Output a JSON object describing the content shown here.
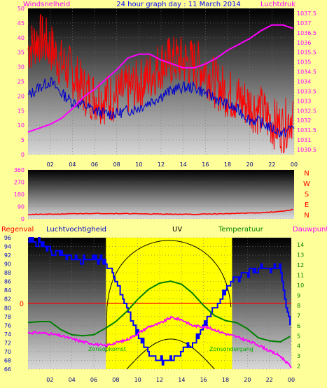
{
  "chart_data": [
    {
      "type": "line",
      "title": "24 hour graph day : 11 March 2014",
      "left_label": "Windsnelheid",
      "right_label": "Luchtdruk",
      "x_ticks": [
        "02",
        "04",
        "06",
        "08",
        "10",
        "12",
        "14",
        "16",
        "18",
        "20",
        "22",
        "00"
      ],
      "yleft_ticks": [
        0,
        5,
        10,
        15,
        20,
        25,
        30,
        35,
        40,
        45,
        50
      ],
      "yleft_range": [
        0,
        50
      ],
      "yright_ticks": [
        1030.5,
        1031,
        1031.5,
        1032,
        1032.5,
        1033,
        1033.5,
        1034,
        1034.5,
        1035,
        1035.5,
        1036,
        1036.5,
        1037,
        1037.5
      ],
      "yright_range": [
        1030.25,
        1037.75
      ],
      "series": [
        {
          "color": "#ff0000",
          "x": [
            0,
            1,
            2,
            3,
            4,
            5,
            6,
            7,
            8,
            9,
            10,
            11,
            12,
            13,
            14,
            15,
            16,
            17,
            18,
            19,
            20,
            21,
            22,
            23,
            24
          ],
          "y": [
            36,
            40,
            37,
            31,
            28,
            22,
            20,
            19,
            20,
            22,
            24,
            27,
            31,
            32,
            32,
            31,
            29,
            24,
            21,
            19,
            17,
            15,
            11,
            9,
            15
          ]
        },
        {
          "color": "#0000cc",
          "x": [
            0,
            1,
            2,
            3,
            4,
            5,
            6,
            7,
            8,
            9,
            10,
            11,
            12,
            13,
            14,
            15,
            16,
            17,
            18,
            19,
            20,
            21,
            22,
            23,
            24
          ],
          "y": [
            20,
            23,
            25,
            21,
            18,
            17,
            15,
            14,
            14,
            15,
            16,
            18,
            20,
            22,
            23,
            23,
            21,
            19,
            17,
            15,
            12,
            11,
            9,
            7,
            10
          ]
        },
        {
          "color": "#ff00ff",
          "x": [
            0,
            1,
            2,
            3,
            4,
            5,
            6,
            7,
            8,
            9,
            10,
            11,
            12,
            13,
            14,
            15,
            16,
            17,
            18,
            19,
            20,
            21,
            22,
            23,
            24
          ],
          "y": [
            1031.4,
            1031.6,
            1031.8,
            1032.1,
            1032.6,
            1033.2,
            1033.6,
            1034.1,
            1034.6,
            1035.2,
            1035.4,
            1035.4,
            1035.1,
            1034.9,
            1034.7,
            1034.7,
            1034.9,
            1035.2,
            1035.6,
            1035.9,
            1036.2,
            1036.6,
            1036.9,
            1036.9,
            1036.7
          ]
        }
      ]
    },
    {
      "type": "line",
      "x_ticks": [
        "02",
        "04",
        "06",
        "08",
        "10",
        "12",
        "14",
        "16",
        "18",
        "20",
        "22",
        "00"
      ],
      "y_ticks": [
        0,
        90,
        180,
        270,
        360
      ],
      "y_range": [
        0,
        360
      ],
      "compass": [
        "N",
        "W",
        "S",
        "E",
        "N"
      ],
      "series": [
        {
          "color": "#ff0000",
          "x": [
            0,
            3,
            6,
            9,
            12,
            15,
            18,
            21,
            23,
            24
          ],
          "y": [
            32,
            35,
            40,
            38,
            35,
            33,
            38,
            45,
            55,
            70
          ]
        }
      ]
    },
    {
      "type": "line",
      "labels": {
        "rain": "Regenval",
        "humidity": "Luchtvochtigheid",
        "uv": "UV",
        "temperature": "Temperatuur",
        "dewpoint": "Dauwpunt"
      },
      "rain_value_label": "0",
      "sunrise_label": "Zonsopkomst",
      "sunset_label": "Zonsondergang",
      "x_ticks": [
        "02",
        "04",
        "06",
        "08",
        "10",
        "12",
        "14",
        "16",
        "18",
        "20",
        "22",
        "00"
      ],
      "yleft_ticks": [
        66,
        68,
        70,
        72,
        74,
        76,
        78,
        80,
        82,
        84,
        86,
        88,
        90,
        92,
        94,
        96
      ],
      "yleft_range": [
        66,
        96
      ],
      "yright_ticks": [
        2,
        3,
        4,
        5,
        6,
        7,
        8,
        9,
        10,
        11,
        12,
        13,
        14
      ],
      "yright_range": [
        1.7,
        14.7
      ],
      "daylight_hours": [
        7.1,
        18.6
      ],
      "series": [
        {
          "name": "Luchtvochtigheid",
          "color": "#0000ff",
          "axis": "left",
          "x": [
            0,
            1,
            2,
            3,
            4,
            5,
            6,
            7,
            8,
            9,
            10,
            11,
            12,
            13,
            14,
            15,
            16,
            17,
            18,
            19,
            20,
            21,
            22,
            23,
            23.5,
            24
          ],
          "y": [
            95,
            95,
            93,
            92,
            91,
            91,
            91,
            91,
            86,
            80,
            74,
            70,
            68,
            68,
            70,
            72,
            76,
            80,
            84,
            87,
            88,
            89,
            89,
            89,
            80,
            76
          ]
        },
        {
          "name": "Temperatuur",
          "color": "#008000",
          "axis": "right",
          "x": [
            0,
            1,
            2,
            3,
            4,
            5,
            6,
            7,
            8,
            9,
            10,
            11,
            12,
            13,
            14,
            15,
            16,
            17,
            18,
            19,
            20,
            21,
            22,
            23,
            24
          ],
          "y": [
            6.3,
            6.4,
            6.4,
            5.6,
            5.1,
            5.0,
            5.1,
            5.7,
            6.4,
            7.4,
            8.6,
            9.6,
            10.2,
            10.4,
            10.1,
            9.2,
            8.0,
            7.0,
            6.5,
            6.3,
            5.7,
            4.8,
            4.5,
            4.4,
            5.0
          ]
        },
        {
          "name": "Dauwpunt",
          "color": "#ff00ff",
          "axis": "right",
          "x": [
            0,
            1,
            2,
            3,
            4,
            5,
            6,
            7,
            8,
            9,
            10,
            11,
            12,
            13,
            14,
            15,
            16,
            17,
            18,
            19,
            20,
            21,
            22,
            23,
            24
          ],
          "y": [
            5.3,
            5.3,
            5.2,
            5.0,
            4.7,
            4.4,
            4.2,
            4.0,
            4.3,
            4.6,
            5.2,
            5.9,
            6.2,
            6.8,
            6.6,
            6.0,
            5.9,
            5.6,
            5.2,
            4.9,
            4.5,
            4.1,
            3.5,
            3.0,
            1.9
          ]
        }
      ],
      "uv_max": 100
    }
  ]
}
